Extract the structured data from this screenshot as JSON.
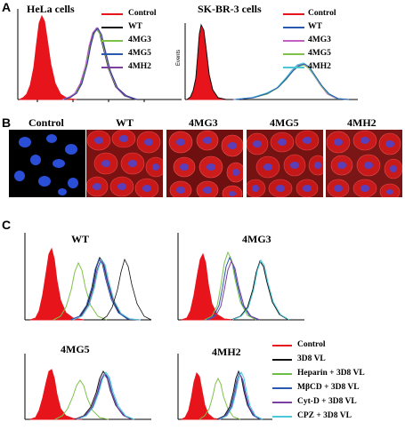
{
  "panel_labels": {
    "a": "A",
    "b": "B",
    "c": "C"
  },
  "panel_a": {
    "left": {
      "title": "HeLa cells",
      "legend": [
        "Control",
        "WT",
        "4MG3",
        "4MG5",
        "4MH2"
      ]
    },
    "right": {
      "title": "SK-BR-3 cells",
      "y_axis_label": "Events",
      "legend": [
        "Control",
        "WT",
        "4MG3",
        "4MG5",
        "4MH2"
      ]
    }
  },
  "panel_b": {
    "labels": [
      "Control",
      "WT",
      "4MG3",
      "4MG5",
      "4MH2"
    ]
  },
  "panel_c": {
    "titles": [
      "WT",
      "4MG3",
      "4MG5",
      "4MH2"
    ],
    "legend": [
      "Control",
      "3D8 VL",
      "Heparin + 3D8 VL",
      "MβCD + 3D8 VL",
      "Cyt-D + 3D8 VL",
      "CPZ + 3D8 VL"
    ]
  },
  "colors": {
    "control": "#e8141c",
    "wt": "#111111",
    "mg3": "#c25fc4",
    "mg5": "#7fc24a",
    "mh2": "#3a3aa6",
    "vl": "#111111",
    "heparin": "#6bbf45",
    "mbcd": "#2a57b0",
    "cytd": "#7b3fa0",
    "cpz": "#4cc7d8",
    "cell_nucleus": "#2a4fd6",
    "cell_red": "#c81818"
  }
}
